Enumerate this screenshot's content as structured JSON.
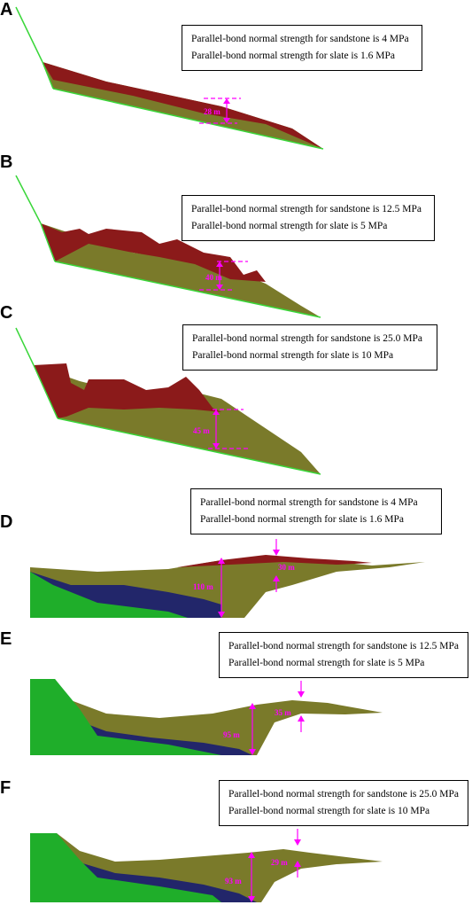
{
  "panels": [
    {
      "letter": "A",
      "line1": "Parallel-bond normal strength for sandstone is 4 MPa",
      "line2": "Parallel-bond normal strength for slate is 1.6 MPa",
      "measures": [
        "28 m"
      ]
    },
    {
      "letter": "B",
      "line1": "Parallel-bond normal strength for sandstone is 12.5 MPa",
      "line2": "Parallel-bond normal strength for slate is 5 MPa",
      "measures": [
        "40 m"
      ]
    },
    {
      "letter": "C",
      "line1": "Parallel-bond normal strength for sandstone is 25.0 MPa",
      "line2": "Parallel-bond normal strength for slate is 10 MPa",
      "measures": [
        "45 m"
      ]
    },
    {
      "letter": "D",
      "line1": "Parallel-bond normal strength for sandstone is 4 MPa",
      "line2": "Parallel-bond normal strength for slate is 1.6 MPa",
      "measures": [
        "30 m",
        "110 m"
      ]
    },
    {
      "letter": "E",
      "line1": "Parallel-bond normal strength for sandstone is 12.5 MPa",
      "line2": "Parallel-bond normal strength for slate is 5 MPa",
      "measures": [
        "35 m",
        "95 m"
      ]
    },
    {
      "letter": "F",
      "line1": "Parallel-bond normal strength for sandstone is 25.0 MPa",
      "line2": "Parallel-bond normal strength for slate is 10 MPa",
      "measures": [
        "29 m",
        "93 m"
      ]
    }
  ],
  "colors": {
    "sandstone": "#8b1a1a",
    "slate": "#7a7a2a",
    "bedrock": "#1fae2a",
    "deep": "#22266a",
    "boundary": "#39d639",
    "annotation": "#ff00ff"
  }
}
